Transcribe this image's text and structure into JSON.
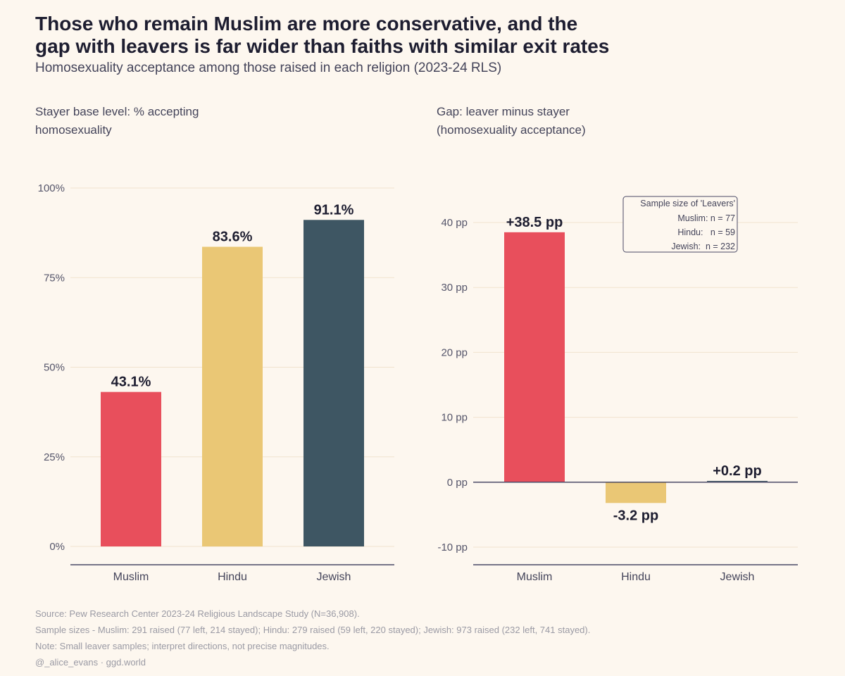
{
  "title_lines": [
    "Those who remain Muslim are more conservative, and the",
    "gap with leavers is far wider than faiths with similar exit rates"
  ],
  "subtitle": "Homosexuality acceptance among those raised in each religion (2023-24 RLS)",
  "left_panel": {
    "label_lines": [
      "Stayer base level: % accepting",
      "homosexuality"
    ]
  },
  "right_panel": {
    "label_lines": [
      "Gap: leaver minus stayer",
      "(homosexuality acceptance)"
    ]
  },
  "legend_box": {
    "title": "Sample size of 'Leavers'",
    "lines": [
      "Muslim: n = 77",
      "Hindu:   n = 59",
      "Jewish:  n = 232"
    ]
  },
  "colors": {
    "muslim": "#e84f5c",
    "hindu": "#eac775",
    "jewish": "#3e5663",
    "axis": "#4a4a66",
    "grid": "#f1e3cf"
  },
  "chart_data": [
    {
      "type": "bar",
      "title": "Stayer base level: % accepting homosexuality",
      "categories": [
        "Muslim",
        "Hindu",
        "Jewish"
      ],
      "values": [
        43.1,
        83.6,
        91.1
      ],
      "data_labels": [
        "43.1%",
        "83.6%",
        "91.1%"
      ],
      "ylim": [
        0,
        100
      ],
      "yticks": [
        0,
        25,
        50,
        75,
        100
      ],
      "ytick_labels": [
        "0%",
        "25%",
        "50%",
        "75%",
        "100%"
      ],
      "xlabel": "",
      "ylabel": ""
    },
    {
      "type": "bar",
      "title": "Gap: leaver minus stayer (homosexuality acceptance)",
      "categories": [
        "Muslim",
        "Hindu",
        "Jewish"
      ],
      "values": [
        38.5,
        -3.2,
        0.2
      ],
      "data_labels": [
        "+38.5 pp",
        "-3.2 pp",
        "+0.2 pp"
      ],
      "ylim": [
        -10,
        40
      ],
      "yticks": [
        -10,
        0,
        10,
        20,
        30,
        40
      ],
      "ytick_labels": [
        "-10 pp",
        "0 pp",
        "10 pp",
        "20 pp",
        "30 pp",
        "40 pp"
      ],
      "xlabel": "",
      "ylabel": ""
    }
  ],
  "footer_lines": [
    "Source: Pew Research Center 2023-24 Religious Landscape Study (N=36,908).",
    "Sample sizes - Muslim: 291 raised (77 left, 214 stayed); Hindu: 279 raised (59 left, 220 stayed); Jewish: 973 raised (232 left, 741 stayed).",
    "Note: Small leaver samples; interpret directions, not precise magnitudes.",
    "@_alice_evans · ggd.world"
  ]
}
